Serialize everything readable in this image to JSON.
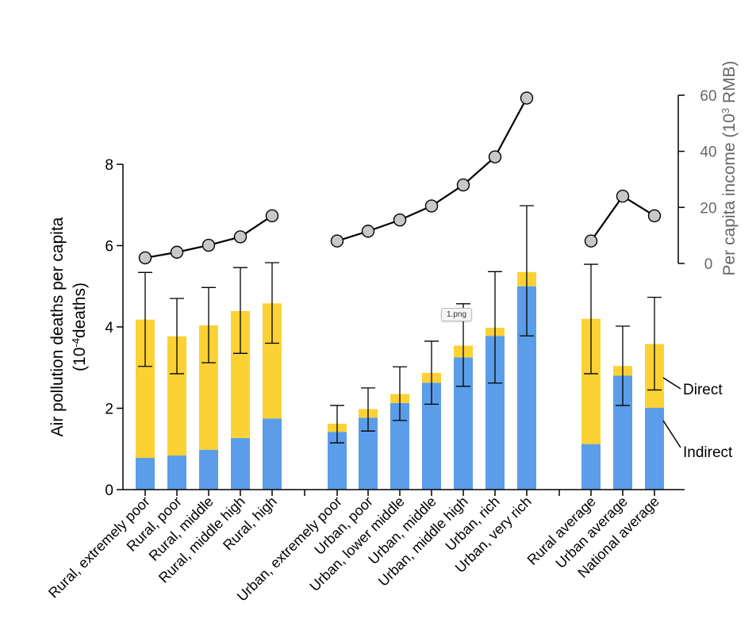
{
  "tooltip": "1.png",
  "chart_data": {
    "type": "bar",
    "stacked": true,
    "categories": [
      "Rural, extremely poor",
      "Rural, poor",
      "Rural, middle",
      "Rural, middle high",
      "Rural, high",
      "Urban, extremely poor",
      "Urban, poor",
      "Urban, lower middle",
      "Urban, middle",
      "Urban, middle high",
      "Urban, rich",
      "Urban, very rich",
      "Rural average",
      "Urban average",
      "National average"
    ],
    "groups": [
      [
        0,
        4
      ],
      [
        5,
        11
      ],
      [
        12,
        14
      ]
    ],
    "series": [
      {
        "name": "Indirect",
        "color": "#5b9de8",
        "values": [
          0.78,
          0.84,
          0.98,
          1.27,
          1.75,
          1.42,
          1.77,
          2.13,
          2.63,
          3.25,
          3.78,
          5.0,
          1.12,
          2.8,
          2.01
        ]
      },
      {
        "name": "Direct",
        "color": "#fcd134",
        "values": [
          3.4,
          2.93,
          3.06,
          3.12,
          2.83,
          0.2,
          0.21,
          0.22,
          0.24,
          0.29,
          0.2,
          0.35,
          3.08,
          0.24,
          1.57
        ]
      }
    ],
    "error_bars": {
      "low": [
        3.03,
        2.85,
        3.12,
        3.35,
        3.6,
        1.15,
        1.44,
        1.7,
        2.1,
        2.54,
        2.62,
        3.78,
        2.85,
        2.07,
        2.45
      ],
      "high": [
        5.34,
        4.7,
        4.97,
        5.46,
        5.58,
        2.07,
        2.5,
        3.02,
        3.65,
        4.57,
        5.36,
        6.98,
        5.54,
        4.02,
        4.73
      ]
    },
    "income_line": {
      "name": "Per capita income",
      "values": [
        2,
        4,
        6.5,
        9.5,
        17,
        8,
        11.5,
        15.5,
        20.5,
        28,
        38,
        59,
        8,
        24,
        17
      ],
      "groups": [
        [
          0,
          4
        ],
        [
          5,
          11
        ],
        [
          12,
          14
        ]
      ]
    },
    "y_left": {
      "label_line1": "Air pollution deaths per capita",
      "label_line2": "(10",
      "label_sup": "-4",
      "label_end": "deaths)",
      "ylim": [
        0,
        8
      ],
      "ticks": [
        "0",
        "2",
        "4",
        "6",
        "8"
      ]
    },
    "y_right": {
      "label_main": "Per capita income (10",
      "label_sup": "3",
      "label_end": " RMB)",
      "ylim": [
        0,
        60
      ],
      "ticks": [
        "0",
        "20",
        "40",
        "60"
      ]
    },
    "annotations": [
      "Direct",
      "Indirect"
    ]
  }
}
